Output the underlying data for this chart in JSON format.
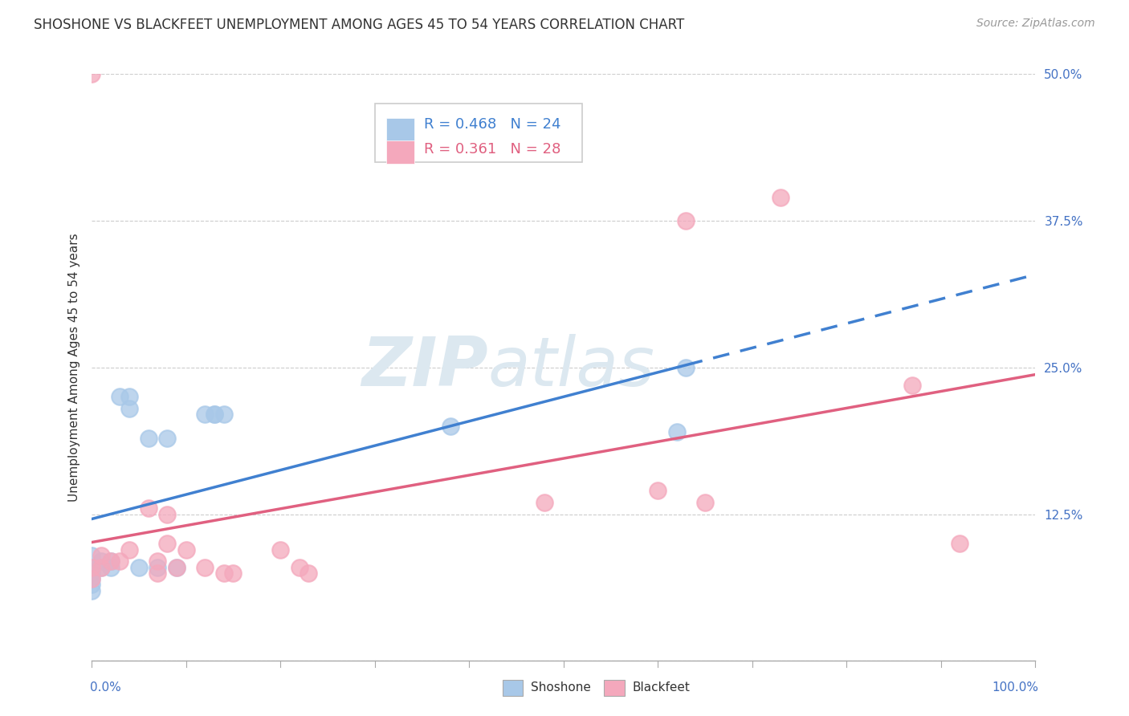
{
  "title": "SHOSHONE VS BLACKFEET UNEMPLOYMENT AMONG AGES 45 TO 54 YEARS CORRELATION CHART",
  "source": "Source: ZipAtlas.com",
  "ylabel": "Unemployment Among Ages 45 to 54 years",
  "xlim": [
    0,
    1.0
  ],
  "ylim": [
    0,
    0.5
  ],
  "yticks": [
    0.0,
    0.125,
    0.25,
    0.375,
    0.5
  ],
  "ytick_labels": [
    "",
    "12.5%",
    "25.0%",
    "37.5%",
    "50.0%"
  ],
  "shoshone_color": "#a8c8e8",
  "blackfeet_color": "#f4a8bc",
  "shoshone_line_color": "#4080d0",
  "blackfeet_line_color": "#e06080",
  "shoshone_R": 0.468,
  "shoshone_N": 24,
  "blackfeet_R": 0.361,
  "blackfeet_N": 28,
  "shoshone_x": [
    0.0,
    0.0,
    0.0,
    0.0,
    0.0,
    0.01,
    0.01,
    0.02,
    0.02,
    0.03,
    0.04,
    0.04,
    0.05,
    0.06,
    0.07,
    0.08,
    0.09,
    0.12,
    0.13,
    0.13,
    0.14,
    0.38,
    0.62,
    0.63
  ],
  "shoshone_y": [
    0.06,
    0.065,
    0.07,
    0.075,
    0.09,
    0.08,
    0.085,
    0.08,
    0.085,
    0.225,
    0.215,
    0.225,
    0.08,
    0.19,
    0.08,
    0.19,
    0.08,
    0.21,
    0.21,
    0.21,
    0.21,
    0.2,
    0.195,
    0.25
  ],
  "blackfeet_x": [
    0.0,
    0.0,
    0.0,
    0.01,
    0.01,
    0.02,
    0.03,
    0.04,
    0.06,
    0.07,
    0.07,
    0.08,
    0.08,
    0.09,
    0.1,
    0.12,
    0.14,
    0.15,
    0.2,
    0.22,
    0.23,
    0.48,
    0.6,
    0.63,
    0.65,
    0.73,
    0.87,
    0.92
  ],
  "blackfeet_y": [
    0.5,
    0.07,
    0.08,
    0.08,
    0.09,
    0.085,
    0.085,
    0.095,
    0.13,
    0.075,
    0.085,
    0.1,
    0.125,
    0.08,
    0.095,
    0.08,
    0.075,
    0.075,
    0.095,
    0.08,
    0.075,
    0.135,
    0.145,
    0.375,
    0.135,
    0.395,
    0.235,
    0.1
  ],
  "background_color": "#ffffff",
  "grid_color": "#cccccc",
  "title_fontsize": 12,
  "axis_label_fontsize": 11,
  "tick_fontsize": 11,
  "legend_fontsize": 13,
  "source_fontsize": 10,
  "label_color": "#4472c4"
}
